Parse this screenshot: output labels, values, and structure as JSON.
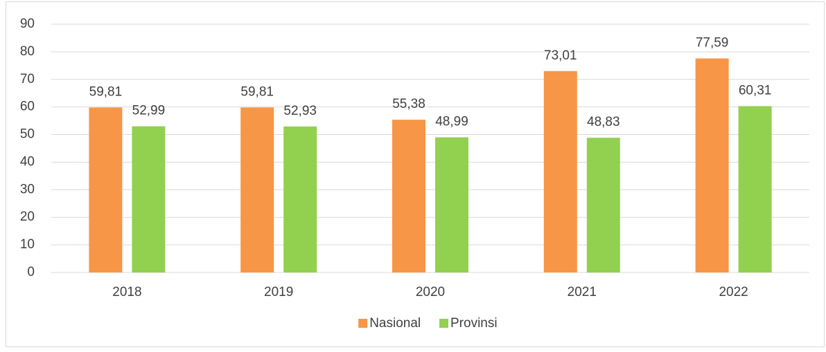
{
  "chart_data": {
    "type": "bar",
    "categories": [
      "2018",
      "2019",
      "2020",
      "2021",
      "2022"
    ],
    "series": [
      {
        "name": "Nasional",
        "color": "#f79646",
        "values": [
          59.81,
          59.81,
          55.38,
          73.01,
          77.59
        ],
        "value_labels": [
          "59,81",
          "59,81",
          "55,38",
          "73,01",
          "77,59"
        ]
      },
      {
        "name": "Provinsi",
        "color": "#92d050",
        "values": [
          52.99,
          52.93,
          48.99,
          48.83,
          60.31
        ],
        "value_labels": [
          "52,99",
          "52,93",
          "48,99",
          "48,83",
          "60,31"
        ]
      }
    ],
    "ylim": [
      0,
      90
    ],
    "yticks": [
      0,
      10,
      20,
      30,
      40,
      50,
      60,
      70,
      80,
      90
    ],
    "grid": true,
    "legend": "bottom"
  }
}
